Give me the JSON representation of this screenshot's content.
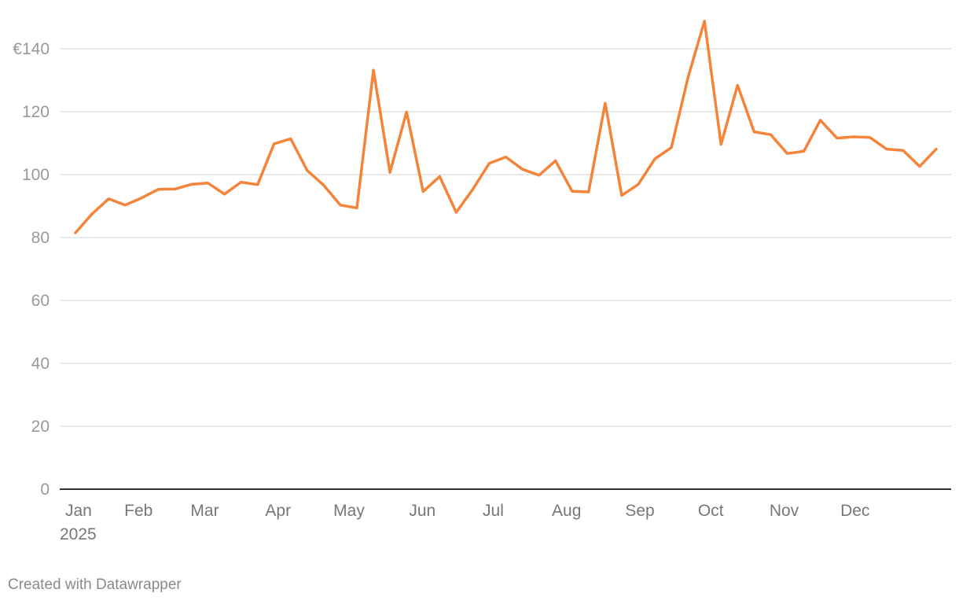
{
  "chart_data": {
    "type": "line",
    "y_prefix": "€",
    "ylim": [
      0,
      140
    ],
    "yticks": [
      0,
      20,
      40,
      60,
      80,
      100,
      120,
      140
    ],
    "xlim": [
      "2025-01-01",
      "2025-12-31"
    ],
    "xticks": [
      {
        "label": "Jan",
        "date": "2025-01-01",
        "year": "2025"
      },
      {
        "label": "Feb",
        "date": "2025-02-01"
      },
      {
        "label": "Mar",
        "date": "2025-03-01"
      },
      {
        "label": "Apr",
        "date": "2025-04-01"
      },
      {
        "label": "May",
        "date": "2025-05-01"
      },
      {
        "label": "Jun",
        "date": "2025-06-01"
      },
      {
        "label": "Jul",
        "date": "2025-07-01"
      },
      {
        "label": "Aug",
        "date": "2025-08-01"
      },
      {
        "label": "Sep",
        "date": "2025-09-01"
      },
      {
        "label": "Oct",
        "date": "2025-10-01"
      },
      {
        "label": "Nov",
        "date": "2025-11-01"
      },
      {
        "label": "Dec",
        "date": "2025-12-01"
      }
    ],
    "grid": true,
    "series": [
      {
        "color": "#f5843b",
        "points": [
          [
            "2025-01-06",
            81.5
          ],
          [
            "2025-01-13",
            87.5
          ],
          [
            "2025-01-20",
            92.3
          ],
          [
            "2025-01-27",
            90.3
          ],
          [
            "2025-02-03",
            92.6
          ],
          [
            "2025-02-10",
            95.3
          ],
          [
            "2025-02-17",
            95.4
          ],
          [
            "2025-02-24",
            96.9
          ],
          [
            "2025-03-03",
            97.3
          ],
          [
            "2025-03-10",
            93.8
          ],
          [
            "2025-03-17",
            97.6
          ],
          [
            "2025-03-24",
            96.8
          ],
          [
            "2025-03-31",
            109.8
          ],
          [
            "2025-04-07",
            111.4
          ],
          [
            "2025-04-14",
            101.3
          ],
          [
            "2025-04-21",
            96.6
          ],
          [
            "2025-04-28",
            90.3
          ],
          [
            "2025-05-05",
            89.4
          ],
          [
            "2025-05-12",
            133.2
          ],
          [
            "2025-05-19",
            100.7
          ],
          [
            "2025-05-26",
            119.9
          ],
          [
            "2025-06-02",
            94.6
          ],
          [
            "2025-06-09",
            99.4
          ],
          [
            "2025-06-16",
            88.0
          ],
          [
            "2025-06-23",
            95.3
          ],
          [
            "2025-06-30",
            103.6
          ],
          [
            "2025-07-07",
            105.6
          ],
          [
            "2025-07-14",
            101.7
          ],
          [
            "2025-07-21",
            99.8
          ],
          [
            "2025-07-28",
            104.4
          ],
          [
            "2025-08-04",
            94.7
          ],
          [
            "2025-08-11",
            94.5
          ],
          [
            "2025-08-18",
            122.7
          ],
          [
            "2025-08-25",
            93.4
          ],
          [
            "2025-09-01",
            96.9
          ],
          [
            "2025-09-08",
            105.0
          ],
          [
            "2025-09-15",
            108.6
          ],
          [
            "2025-09-22",
            130.8
          ],
          [
            "2025-09-29",
            148.8
          ],
          [
            "2025-10-06",
            109.6
          ],
          [
            "2025-10-13",
            128.4
          ],
          [
            "2025-10-20",
            113.6
          ],
          [
            "2025-10-27",
            112.7
          ],
          [
            "2025-11-03",
            106.7
          ],
          [
            "2025-11-10",
            107.4
          ],
          [
            "2025-11-17",
            117.3
          ],
          [
            "2025-11-24",
            111.6
          ],
          [
            "2025-12-01",
            112.0
          ],
          [
            "2025-12-08",
            111.8
          ],
          [
            "2025-12-15",
            108.1
          ],
          [
            "2025-12-22",
            107.7
          ],
          [
            "2025-12-29",
            102.6
          ],
          [
            "2026-01-05",
            108.1
          ]
        ]
      }
    ]
  },
  "footer": {
    "credit": "Created with Datawrapper"
  }
}
